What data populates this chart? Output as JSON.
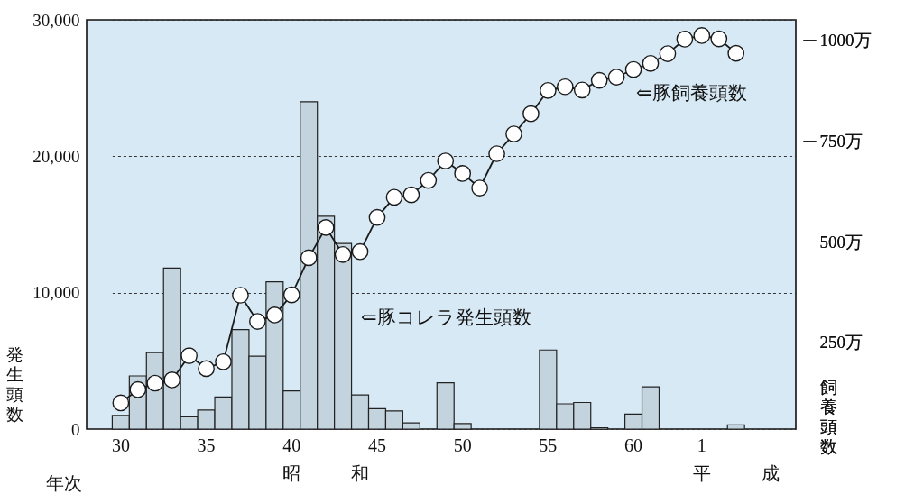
{
  "chart_data": {
    "type": "bar",
    "xlabel": "年次",
    "ylabel": "発生頭数",
    "y2label": "飼養頭数",
    "categories": [
      "30",
      null,
      null,
      null,
      null,
      "35",
      null,
      null,
      null,
      null,
      "40",
      null,
      null,
      null,
      null,
      "45",
      null,
      null,
      null,
      null,
      "50",
      null,
      null,
      null,
      null,
      "55",
      null,
      null,
      null,
      null,
      "60",
      null,
      null,
      null,
      "1",
      null,
      null,
      null,
      null,
      null
    ],
    "series": [
      {
        "name": "⇐豚コレラ発生頭数",
        "color": "#c4d4de",
        "values": [
          1000,
          3900,
          5600,
          11800,
          900,
          1400,
          2350,
          7300,
          5350,
          10800,
          2800,
          24000,
          15600,
          13600,
          2500,
          1500,
          1330,
          460,
          null,
          3400,
          400,
          null,
          null,
          null,
          null,
          5800,
          1850,
          1950,
          100,
          null,
          1100,
          3100,
          null,
          null,
          null,
          null,
          300,
          null,
          null,
          null
        ]
      },
      {
        "name": "⇐豚飼養頭数",
        "type": "line",
        "axis": "y2",
        "color": "#1a1a1a",
        "values": [
          100,
          133,
          149,
          157,
          217,
          185,
          202,
          367,
          302,
          318,
          368,
          460,
          535,
          468,
          475,
          560,
          610,
          616,
          652,
          700,
          669,
          633,
          718,
          767,
          817,
          875,
          884,
          876,
          900,
          908,
          927,
          942,
          966,
          1002,
          1011,
          1003,
          967,
          null,
          null,
          null
        ]
      }
    ],
    "ylim": [
      0,
      30000
    ],
    "yticks": [
      0,
      {
        "value": 10000,
        "label": "10,000"
      },
      {
        "value": 20000,
        "label": "20,000"
      },
      {
        "value": 30000,
        "label": "30,000"
      }
    ],
    "y2lim": [
      35,
      1050
    ],
    "y2ticks": [
      {
        "value": 250,
        "label": "250万"
      },
      {
        "value": 500,
        "label": "500万"
      },
      {
        "value": 750,
        "label": "750万"
      },
      {
        "value": 1000,
        "label": "1000万"
      }
    ],
    "annotations": [
      "昭和",
      "平成"
    ],
    "grid": "y",
    "marker": "circle",
    "line_style": "solid"
  }
}
